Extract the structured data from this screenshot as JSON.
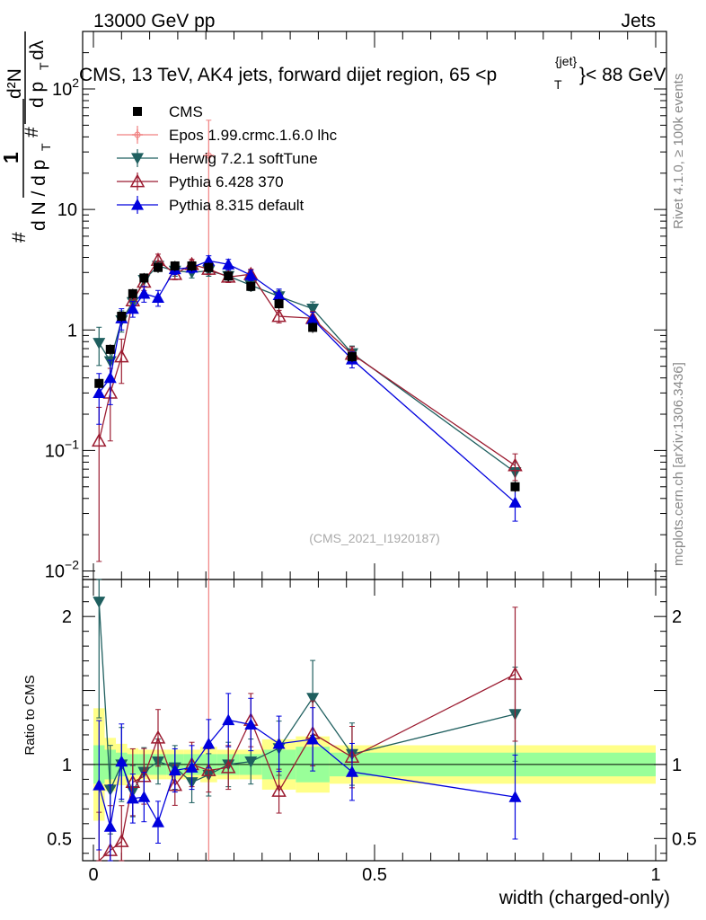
{
  "header": {
    "left": "13000 GeV pp",
    "right": "Jets"
  },
  "side_labels": {
    "rivet": "Rivet 4.1.0, ≥ 100k events",
    "mcplots": "mcplots.cern.ch [arXiv:1306.3436]"
  },
  "ylabel_parts": {
    "one": "1",
    "num_top": "#",
    "den_left": "d N / d p",
    "den_T": "T",
    "frac_top": "#",
    "frac_num": "d²N",
    "frac_den": "d p",
    "frac_den_T": "T",
    "dlam": "dλ"
  },
  "chart_data": {
    "type": "line",
    "title_parts": {
      "main": "CMS, 13 TeV, AK4 jets, forward dijet region, 65 <p",
      "sup": "{jet}",
      "sub": "T",
      "tail": "}< 88 GeV"
    },
    "watermark": "(CMS_2021_I1920187)",
    "xlabel": "width (charged-only)",
    "xlim": [
      0,
      1
    ],
    "x_ticks": [
      "0",
      "0.5",
      "1"
    ],
    "main_panel": {
      "yscale": "log",
      "ylim": [
        0.0085,
        300
      ],
      "y_ticks": [
        {
          "value": 0.01,
          "base": "10",
          "exp": "−2"
        },
        {
          "value": 0.1,
          "base": "10",
          "exp": "−1"
        },
        {
          "value": 1,
          "base": "1",
          "exp": ""
        },
        {
          "value": 10,
          "base": "10",
          "exp": ""
        },
        {
          "value": 100,
          "base": "10",
          "exp": "2"
        }
      ]
    },
    "ratio_panel": {
      "ylabel": "Ratio to CMS",
      "ylim": [
        0.35,
        2.25
      ],
      "y_ticks": [
        "0.5",
        "1",
        "2"
      ],
      "y_tick_values": [
        0.5,
        1,
        2
      ]
    },
    "legend": [
      "CMS",
      "Epos 1.99.crmc.1.6.0 lhc",
      "Herwig 7.2.1 softTune",
      "Pythia 6.428 370",
      "Pythia 8.315 default"
    ],
    "bins": [
      {
        "lo": 0.0,
        "hi": 0.02
      },
      {
        "lo": 0.02,
        "hi": 0.04
      },
      {
        "lo": 0.04,
        "hi": 0.06
      },
      {
        "lo": 0.06,
        "hi": 0.08
      },
      {
        "lo": 0.08,
        "hi": 0.1
      },
      {
        "lo": 0.1,
        "hi": 0.13
      },
      {
        "lo": 0.13,
        "hi": 0.16
      },
      {
        "lo": 0.16,
        "hi": 0.19
      },
      {
        "lo": 0.19,
        "hi": 0.22
      },
      {
        "lo": 0.22,
        "hi": 0.26
      },
      {
        "lo": 0.26,
        "hi": 0.3
      },
      {
        "lo": 0.3,
        "hi": 0.36
      },
      {
        "lo": 0.36,
        "hi": 0.42
      },
      {
        "lo": 0.42,
        "hi": 0.5
      },
      {
        "lo": 0.5,
        "hi": 1.0
      }
    ],
    "band_stat": [
      0.13,
      0.1,
      0.08,
      0.07,
      0.07,
      0.07,
      0.07,
      0.07,
      0.07,
      0.07,
      0.07,
      0.1,
      0.12,
      0.08,
      0.08
    ],
    "band_tot": [
      0.38,
      0.18,
      0.14,
      0.11,
      0.1,
      0.1,
      0.1,
      0.1,
      0.12,
      0.1,
      0.1,
      0.17,
      0.19,
      0.13,
      0.13
    ],
    "data": {
      "name": "CMS",
      "color": "#000000",
      "x": [
        0.01,
        0.03,
        0.05,
        0.07,
        0.09,
        0.115,
        0.145,
        0.175,
        0.205,
        0.24,
        0.28,
        0.33,
        0.39,
        0.46,
        0.75
      ],
      "y": [
        0.36,
        0.69,
        1.3,
        2.0,
        2.7,
        3.3,
        3.4,
        3.4,
        3.3,
        2.8,
        2.3,
        1.65,
        1.05,
        0.6,
        0.05
      ]
    },
    "series": [
      {
        "name": "Epos 1.99.crmc.1.6.0 lhc",
        "color": "#f08080",
        "marker": "cross",
        "x": [
          0.205
        ],
        "y": [
          28
        ],
        "ylo": [
          0.0085
        ],
        "yhi": [
          55
        ]
      },
      {
        "name": "Herwig 7.2.1 softTune",
        "color": "#1f5f5f",
        "marker": "triangle-down",
        "x": [
          0.01,
          0.03,
          0.05,
          0.07,
          0.09,
          0.115,
          0.145,
          0.175,
          0.205,
          0.24,
          0.28,
          0.33,
          0.39,
          0.46,
          0.75
        ],
        "y": [
          0.78,
          0.55,
          1.2,
          1.7,
          2.6,
          3.4,
          3.1,
          3.0,
          3.1,
          2.8,
          2.35,
          1.9,
          1.5,
          0.64,
          0.066
        ],
        "err_rel": [
          0.35,
          0.3,
          0.2,
          0.15,
          0.12,
          0.1,
          0.1,
          0.1,
          0.1,
          0.1,
          0.1,
          0.12,
          0.14,
          0.15,
          0.2
        ],
        "ratio": [
          2.1,
          0.83,
          1.0,
          0.82,
          0.95,
          1.02,
          0.98,
          0.88,
          0.93,
          1.0,
          1.02,
          1.11,
          1.45,
          1.07,
          1.34
        ]
      },
      {
        "name": "Pythia 6.428 370",
        "color": "#9b1b30",
        "marker": "triangle-up-open",
        "x": [
          0.01,
          0.03,
          0.05,
          0.07,
          0.09,
          0.115,
          0.145,
          0.175,
          0.205,
          0.24,
          0.28,
          0.33,
          0.39,
          0.46,
          0.75
        ],
        "y": [
          0.12,
          0.3,
          0.6,
          1.75,
          2.5,
          3.8,
          2.9,
          3.5,
          3.2,
          2.75,
          2.9,
          1.3,
          1.25,
          0.63,
          0.075
        ],
        "err_rel": [
          0.9,
          0.6,
          0.4,
          0.2,
          0.15,
          0.12,
          0.1,
          0.1,
          0.1,
          0.1,
          0.1,
          0.12,
          0.14,
          0.15,
          0.25
        ],
        "ratio": [
          0.33,
          0.42,
          0.48,
          0.88,
          0.92,
          1.18,
          0.86,
          1.0,
          0.96,
          0.98,
          1.3,
          0.82,
          1.21,
          1.05,
          1.61
        ]
      },
      {
        "name": "Pythia 8.315 default",
        "color": "#0000dd",
        "marker": "triangle-up",
        "x": [
          0.01,
          0.03,
          0.05,
          0.07,
          0.09,
          0.115,
          0.145,
          0.175,
          0.205,
          0.24,
          0.28,
          0.33,
          0.39,
          0.46,
          0.75
        ],
        "y": [
          0.3,
          0.4,
          1.25,
          1.5,
          2.0,
          1.85,
          3.2,
          3.3,
          3.75,
          3.5,
          2.85,
          1.95,
          1.23,
          0.57,
          0.037
        ],
        "err_rel": [
          0.45,
          0.4,
          0.2,
          0.15,
          0.15,
          0.15,
          0.1,
          0.1,
          0.1,
          0.1,
          0.1,
          0.12,
          0.14,
          0.15,
          0.3
        ],
        "ratio": [
          0.86,
          0.58,
          1.02,
          0.77,
          0.78,
          0.61,
          0.96,
          0.98,
          1.14,
          1.3,
          1.27,
          1.14,
          1.17,
          0.95,
          0.78
        ]
      }
    ]
  }
}
